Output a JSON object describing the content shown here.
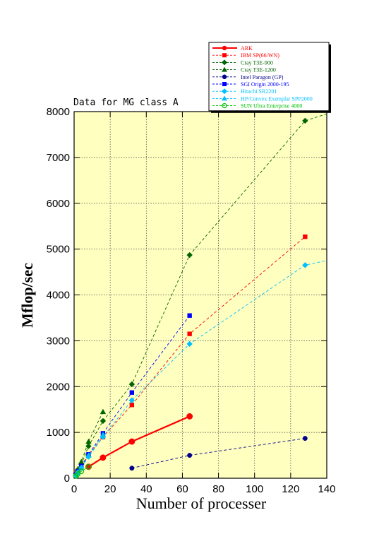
{
  "chart_data": {
    "type": "line",
    "title": "Data for MG class A",
    "xlabel": "Number of processer",
    "ylabel": "Mflop/sec",
    "xlim": [
      0,
      140
    ],
    "ylim": [
      0,
      8000
    ],
    "xticks": [
      0,
      20,
      40,
      60,
      80,
      100,
      120,
      140
    ],
    "yticks": [
      0,
      1000,
      2000,
      3000,
      4000,
      5000,
      6000,
      7000,
      8000
    ],
    "grid": true,
    "plot_background": "#ffffc0",
    "legend_position": "top-right",
    "series": [
      {
        "name": "ARK",
        "color": "#ff0000",
        "marker": "circle",
        "style": "solid",
        "x": [
          8,
          16,
          32,
          64
        ],
        "y": [
          250,
          450,
          800,
          1350
        ]
      },
      {
        "name": "IBM SP(66/WN)",
        "color": "#ff0000",
        "marker": "square",
        "style": "dashed",
        "x": [
          1,
          2,
          4,
          8,
          16,
          32,
          64,
          128
        ],
        "y": [
          100,
          160,
          250,
          500,
          900,
          1600,
          3150,
          5270
        ]
      },
      {
        "name": "Cray T3E-900",
        "color": "#006400",
        "marker": "diamond",
        "style": "dashed",
        "x": [
          1,
          2,
          4,
          8,
          16,
          32,
          64,
          128,
          140
        ],
        "y": [
          100,
          180,
          300,
          700,
          1250,
          2050,
          4870,
          7800,
          7950
        ]
      },
      {
        "name": "Cray T3E-1200",
        "color": "#006400",
        "marker": "triangle",
        "style": "dashed",
        "x": [
          1,
          2,
          4,
          8,
          16
        ],
        "y": [
          110,
          200,
          360,
          800,
          1450
        ]
      },
      {
        "name": "Intel Paragon (GP)",
        "color": "#00008b",
        "marker": "circle",
        "style": "dashed",
        "x": [
          32,
          64,
          128
        ],
        "y": [
          220,
          500,
          870
        ]
      },
      {
        "name": "SGI Origin 2000-195",
        "color": "#0000ff",
        "marker": "square",
        "style": "dashed",
        "x": [
          1,
          2,
          4,
          8,
          16,
          32,
          64
        ],
        "y": [
          80,
          150,
          270,
          520,
          980,
          1870,
          3550
        ]
      },
      {
        "name": "Hitachi SR2201",
        "color": "#00bfff",
        "marker": "diamond",
        "style": "dashed",
        "x": [
          1,
          2,
          4,
          8,
          16,
          32,
          64,
          128,
          140
        ],
        "y": [
          70,
          130,
          230,
          470,
          900,
          1700,
          2930,
          4650,
          4750
        ]
      },
      {
        "name": "HP/Convex Exemplar SPP2000",
        "color": "#00bfff",
        "marker": "triangle",
        "style": "dashed",
        "x": [
          1,
          2,
          4,
          8,
          16
        ],
        "y": [
          60,
          120,
          220,
          500,
          950
        ]
      },
      {
        "name": "SUN Ultra Enterprise 4000",
        "color": "#00c000",
        "marker": "circle-open",
        "style": "dashed",
        "x": [
          1,
          2,
          4,
          8
        ],
        "y": [
          50,
          90,
          150,
          250
        ]
      }
    ]
  }
}
